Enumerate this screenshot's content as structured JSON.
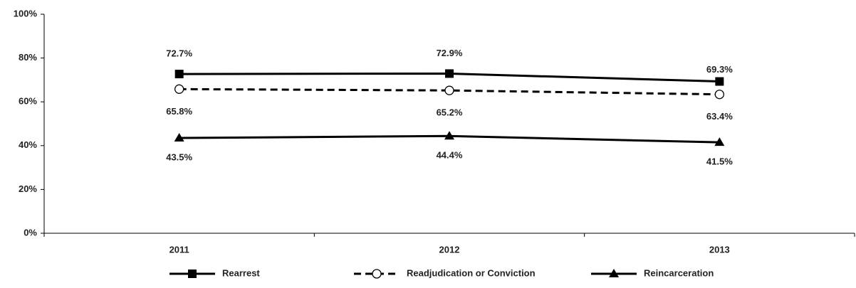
{
  "chart_data": {
    "type": "line",
    "categories": [
      "2011",
      "2012",
      "2013"
    ],
    "series": [
      {
        "name": "Rearrest",
        "color": "#000000",
        "marker": "square",
        "dash": false,
        "values": [
          72.7,
          72.9,
          69.3
        ],
        "value_labels": [
          "72.7%",
          "72.9%",
          "69.3%"
        ]
      },
      {
        "name": "Readjudication or Conviction",
        "color": "#000000",
        "marker": "circle",
        "dash": true,
        "values": [
          65.8,
          65.2,
          63.4
        ],
        "value_labels": [
          "65.8%",
          "65.2%",
          "63.4%"
        ]
      },
      {
        "name": "Reincarceration",
        "color": "#000000",
        "marker": "triangle",
        "dash": false,
        "values": [
          43.5,
          44.4,
          41.5
        ],
        "value_labels": [
          "43.5%",
          "44.4%",
          "41.5%"
        ]
      }
    ],
    "ylim": [
      0,
      100
    ],
    "yticks": [
      {
        "value": 0,
        "label": "0%"
      },
      {
        "value": 20,
        "label": "20%"
      },
      {
        "value": 40,
        "label": "40%"
      },
      {
        "value": 60,
        "label": "60%"
      },
      {
        "value": 80,
        "label": "80%"
      },
      {
        "value": 100,
        "label": "100%"
      }
    ],
    "grid": false,
    "legend": "bottom"
  }
}
